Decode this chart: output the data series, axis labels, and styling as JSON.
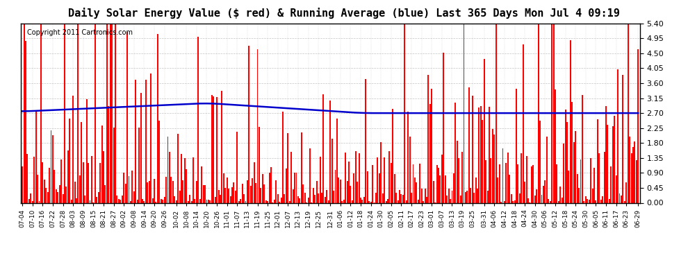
{
  "title": "Daily Solar Energy Value ($ red) & Running Average (blue) Last 365 Days Mon Jul 4 09:19",
  "copyright": "Copyright 2011 Cartronics.com",
  "yticks": [
    0.0,
    0.45,
    0.9,
    1.35,
    1.8,
    2.25,
    2.7,
    3.15,
    3.6,
    4.05,
    4.5,
    4.95,
    5.4
  ],
  "ymax": 5.4,
  "ymin": 0.0,
  "bar_color": "#ff0000",
  "avg_color": "#0000cc",
  "bg_color": "#ffffff",
  "grid_color": "#aaaaaa",
  "title_fontsize": 11,
  "copyright_fontsize": 7,
  "x_labels": [
    "07-04",
    "07-10",
    "07-16",
    "07-22",
    "07-28",
    "08-03",
    "08-09",
    "08-15",
    "08-21",
    "08-27",
    "09-02",
    "09-08",
    "09-14",
    "09-20",
    "09-26",
    "10-02",
    "10-08",
    "10-14",
    "10-20",
    "10-26",
    "11-01",
    "11-07",
    "11-13",
    "11-19",
    "11-25",
    "12-01",
    "12-07",
    "12-13",
    "12-19",
    "12-25",
    "12-31",
    "01-06",
    "01-12",
    "01-18",
    "01-24",
    "01-30",
    "02-05",
    "02-11",
    "02-17",
    "02-23",
    "03-01",
    "03-07",
    "03-13",
    "03-19",
    "03-25",
    "03-31",
    "04-06",
    "04-12",
    "04-18",
    "04-24",
    "04-30",
    "05-06",
    "05-12",
    "05-18",
    "05-24",
    "05-30",
    "06-05",
    "06-11",
    "06-17",
    "06-23",
    "06-29"
  ]
}
